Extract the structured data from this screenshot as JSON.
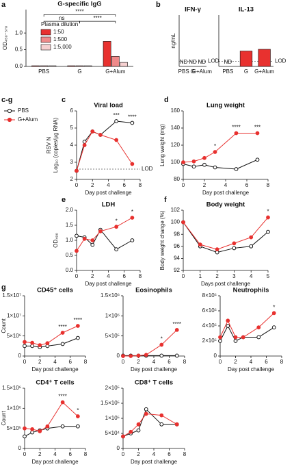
{
  "legend": {
    "label": "c-g",
    "series": [
      {
        "name": "PBS",
        "color": "#111111",
        "marker": "open"
      },
      {
        "name": "G+Alum",
        "color": "#e8312f",
        "marker": "filled"
      }
    ]
  },
  "chart_data": [
    {
      "type": "bar",
      "panel": "a",
      "title": "G-specific IgG",
      "ylabel": "OD₄₅₀₋₅₇₀",
      "categories": [
        "PBS",
        "G",
        "G+Alum"
      ],
      "legend_title": "Plasma dilution",
      "series": [
        {
          "name": "1:50",
          "color": "#e8312f",
          "values": [
            0.02,
            0.02,
            0.75
          ]
        },
        {
          "name": "1:500",
          "color": "#ef8a8a",
          "values": [
            0.02,
            0.02,
            0.3
          ]
        },
        {
          "name": "1:5,000",
          "color": "#f6d0d0",
          "values": [
            0.02,
            0.02,
            0.12
          ]
        }
      ],
      "ylim": [
        0,
        1.7
      ],
      "yticks": [
        {
          "value": 0,
          "label": "0.0"
        },
        {
          "value": 0.5,
          "label": "0.5"
        },
        {
          "value": 1,
          "label": "1.0"
        }
      ],
      "brackets": [
        {
          "from": 0,
          "to": 1,
          "y": 1.35,
          "text": "ns"
        },
        {
          "from": 0,
          "to": 2,
          "y": 1.55,
          "text": "****"
        },
        {
          "from": 1,
          "to": 2,
          "y": 1.35,
          "text": "****"
        }
      ]
    },
    {
      "type": "bar",
      "panel": "b",
      "title": "IFN-γ",
      "ylabel": "ng/mL",
      "categories": [
        "PBS",
        "G",
        "G+Alum"
      ],
      "values": [
        null,
        null,
        null
      ],
      "value_labels": [
        "ND",
        "ND",
        "ND"
      ],
      "color": "#e8312f",
      "ylim": [
        0,
        3
      ],
      "reference_line": {
        "value": 0.3,
        "label": "LOD"
      }
    },
    {
      "type": "bar",
      "title": "IL-13",
      "categories": [
        "PBS",
        "G",
        "G+Alum"
      ],
      "values": [
        null,
        0.9,
        1.0
      ],
      "value_labels": [
        "ND",
        null,
        null
      ],
      "color": "#e8312f",
      "ylim": [
        0,
        3
      ],
      "reference_line": {
        "value": 0.3,
        "label": "LOD"
      }
    },
    {
      "type": "line",
      "panel": "c",
      "title": "Viral load",
      "ylabel": [
        "RSV N",
        "Log₁₀ (copies/µg RNA)"
      ],
      "xlabel": "Day post challenge",
      "x": [
        0,
        1,
        2,
        3,
        5,
        7
      ],
      "series": [
        {
          "values": [
            2.5,
            4.2,
            4.8,
            4.6,
            5.4,
            5.3
          ]
        },
        {
          "values": [
            2.5,
            4.0,
            4.8,
            4.6,
            4.3,
            2.9
          ]
        }
      ],
      "xlim": [
        0,
        8
      ],
      "xticks": [
        0,
        2,
        4,
        6,
        8
      ],
      "ylim": [
        2,
        6
      ],
      "yticks": [
        2,
        3,
        4,
        5,
        6
      ],
      "reference_line": {
        "value": 2.6,
        "label": "LOD"
      },
      "annotations": [
        {
          "x": 5,
          "text": "***"
        },
        {
          "x": 7,
          "text": "****"
        }
      ]
    },
    {
      "type": "line",
      "panel": "d",
      "title": "Lung weight",
      "ylabel": "Lung weight (mg)",
      "xlabel": "Day post challenge",
      "x": [
        0,
        1,
        2,
        3,
        5,
        7
      ],
      "series": [
        {
          "values": [
            98,
            95,
            97,
            94,
            92,
            103
          ]
        },
        {
          "values": [
            100,
            101,
            105,
            112,
            134,
            134
          ]
        }
      ],
      "xlim": [
        0,
        8
      ],
      "xticks": [
        0,
        2,
        4,
        6,
        8
      ],
      "ylim": [
        80,
        160
      ],
      "yticks": [
        80,
        100,
        120,
        140,
        160
      ],
      "annotations": [
        {
          "x": 3,
          "text": "*"
        },
        {
          "x": 5,
          "text": "****"
        },
        {
          "x": 7,
          "text": "***"
        }
      ]
    },
    {
      "type": "line",
      "panel": "e",
      "title": "LDH",
      "ylabel": "OD₄₉₀",
      "xlabel": "Day post challenge",
      "x": [
        0,
        1,
        2,
        3,
        5,
        7
      ],
      "series": [
        {
          "values": [
            1.15,
            1.1,
            0.85,
            1.35,
            0.7,
            1.0
          ]
        },
        {
          "values": [
            0.65,
            1.05,
            1.0,
            1.3,
            1.45,
            1.75
          ]
        }
      ],
      "xlim": [
        0,
        8
      ],
      "xticks": [
        0,
        2,
        4,
        6,
        8
      ],
      "ylim": [
        0,
        2
      ],
      "yticks": [
        {
          "value": 0,
          "label": "0.0"
        },
        {
          "value": 0.5,
          "label": "0.5"
        },
        {
          "value": 1,
          "label": "1.0"
        },
        {
          "value": 1.5,
          "label": "1.5"
        },
        {
          "value": 2,
          "label": "2.0"
        }
      ],
      "annotations": [
        {
          "x": 5,
          "text": "*"
        },
        {
          "x": 7,
          "text": "*"
        }
      ]
    },
    {
      "type": "line",
      "panel": "f",
      "title": "Body weight",
      "ylabel": "Body weight change (%)",
      "xlabel": "Days post challenge",
      "x": [
        0,
        1,
        2,
        3,
        4,
        5
      ],
      "series": [
        {
          "values": [
            100,
            96,
            95,
            95.7,
            96,
            98.4
          ]
        },
        {
          "values": [
            100,
            96.3,
            95.5,
            96.5,
            97.5,
            100.8
          ]
        }
      ],
      "xlim": [
        0,
        5
      ],
      "xticks": [
        0,
        1,
        2,
        3,
        4,
        5
      ],
      "ylim": [
        92,
        102
      ],
      "yticks": [
        92,
        94,
        96,
        98,
        100,
        102
      ],
      "annotations": [
        {
          "x": 5,
          "text": "*"
        }
      ]
    },
    {
      "type": "line",
      "panel": "g",
      "title": "CD45⁺ cells",
      "ylabel": "Count",
      "xlabel": "Day post challenge",
      "x": [
        0,
        1,
        2,
        3,
        5,
        7
      ],
      "series": [
        {
          "values": [
            2500000,
            2500000,
            2200000,
            2500000,
            3000000,
            4500000
          ]
        },
        {
          "values": [
            3500000,
            3300000,
            2700000,
            3200000,
            5800000,
            7500000
          ]
        }
      ],
      "xlim": [
        0,
        8
      ],
      "xticks": [
        0,
        2,
        4,
        6,
        8
      ],
      "ylim": [
        0,
        15000000
      ],
      "yticks": [
        0,
        {
          "value": 5000000,
          "label": "5×10⁶"
        },
        {
          "value": 10000000,
          "label": "1×10⁷"
        },
        {
          "value": 15000000,
          "label": "1.5×10⁷"
        }
      ],
      "annotations": [
        {
          "x": 5,
          "text": "****"
        },
        {
          "x": 7,
          "text": "****"
        }
      ]
    },
    {
      "type": "line",
      "title": "Eosinophils",
      "xlabel": "Day post challenge",
      "x": [
        0,
        1,
        2,
        3,
        5,
        7
      ],
      "series": [
        {
          "values": [
            10000,
            10000,
            10000,
            10000,
            10000,
            10000
          ]
        },
        {
          "values": [
            0,
            0,
            10000,
            30000,
            280000,
            650000
          ]
        }
      ],
      "xlim": [
        0,
        8
      ],
      "xticks": [
        0,
        2,
        4,
        6,
        8
      ],
      "ylim": [
        0,
        1500000
      ],
      "yticks": [
        0,
        {
          "value": 500000,
          "label": "5×10⁵"
        },
        {
          "value": 1000000,
          "label": "1×10⁶"
        },
        {
          "value": 1500000,
          "label": "1.5×10⁶"
        }
      ],
      "annotations": [
        {
          "x": 5,
          "text": "*"
        },
        {
          "x": 7,
          "text": "****"
        }
      ]
    },
    {
      "type": "line",
      "title": "Neutrophils",
      "xlabel": "Day post challenge",
      "x": [
        0,
        1,
        2,
        3,
        5,
        7
      ],
      "series": [
        {
          "values": [
            200000,
            400000,
            200000,
            250000,
            250000,
            380000
          ]
        },
        {
          "values": [
            250000,
            470000,
            250000,
            250000,
            380000,
            570000
          ]
        }
      ],
      "xlim": [
        0,
        8
      ],
      "xticks": [
        0,
        2,
        4,
        6,
        8
      ],
      "ylim": [
        0,
        800000
      ],
      "yticks": [
        0,
        {
          "value": 200000,
          "label": "2×10⁵"
        },
        {
          "value": 400000,
          "label": "4×10⁵"
        },
        {
          "value": 600000,
          "label": "6×10⁵"
        },
        {
          "value": 800000,
          "label": "8×10⁵"
        }
      ],
      "annotations": [
        {
          "x": 7,
          "text": "*"
        }
      ]
    },
    {
      "type": "line",
      "title": "CD4⁺ T cells",
      "ylabel": "Count",
      "xlabel": "Day post challenge",
      "x": [
        0,
        1,
        2,
        3,
        5,
        7
      ],
      "series": [
        {
          "values": [
            300000,
            400000,
            450000,
            500000,
            550000,
            550000
          ]
        },
        {
          "values": [
            500000,
            480000,
            430000,
            550000,
            1150000,
            800000
          ]
        }
      ],
      "xlim": [
        0,
        8
      ],
      "xticks": [
        0,
        2,
        4,
        6,
        8
      ],
      "ylim": [
        0,
        1500000
      ],
      "yticks": [
        0,
        {
          "value": 500000,
          "label": "5×10⁵"
        },
        {
          "value": 1000000,
          "label": "1×10⁶"
        },
        {
          "value": 1500000,
          "label": "1.5×10⁶"
        }
      ],
      "annotations": [
        {
          "x": 5,
          "text": "****"
        },
        {
          "x": 7,
          "text": "*"
        }
      ]
    },
    {
      "type": "line",
      "title": "CD8⁺ T cells",
      "xlabel": "Day post challenge",
      "x": [
        0,
        1,
        2,
        3,
        5,
        7
      ],
      "series": [
        {
          "values": [
            40000,
            50000,
            60000,
            130000,
            80000,
            80000
          ]
        },
        {
          "values": [
            40000,
            55000,
            80000,
            115000,
            110000,
            80000
          ]
        }
      ],
      "xlim": [
        0,
        8
      ],
      "xticks": [
        0,
        2,
        4,
        6,
        8
      ],
      "ylim": [
        0,
        200000
      ],
      "yticks": [
        0,
        {
          "value": 50000,
          "label": "5×10⁴"
        },
        {
          "value": 100000,
          "label": "1×10⁵"
        },
        {
          "value": 150000,
          "label": "1.5×10⁵"
        },
        {
          "value": 200000,
          "label": "2×10⁵"
        }
      ]
    }
  ]
}
